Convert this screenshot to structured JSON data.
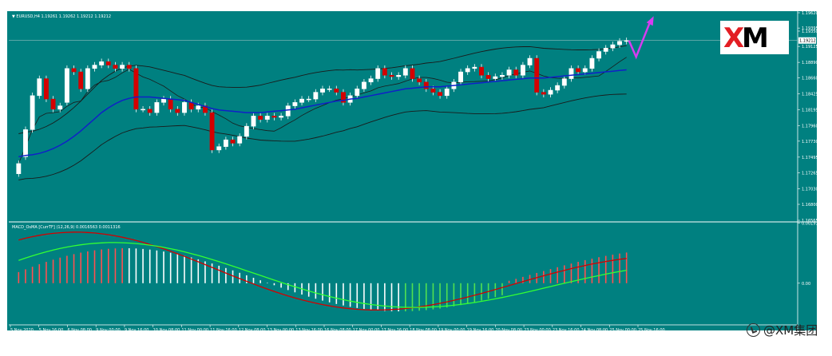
{
  "chart_data": [
    {
      "type": "candlestick",
      "title": "EURUSD,H4  1.19261 1.19262 1.19212 1.19212",
      "y_ticks": [
        "1.19620",
        "1.19395",
        "1.19350",
        "1.19125",
        "1.18890",
        "1.18660",
        "1.18425",
        "1.18195",
        "1.17960",
        "1.17730",
        "1.17495",
        "1.17265",
        "1.17030",
        "1.16800",
        "1.16565"
      ],
      "current_price": "1.19212",
      "ylim": [
        1.16565,
        1.1962
      ],
      "x_ticks": [
        "5 Nov 2020",
        "5 Nov 16:00",
        "6 Nov 08:00",
        "9 Nov 00:00",
        "9 Nov 16:00",
        "10 Nov 08:00",
        "11 Nov 00:00",
        "11 Nov 16:00",
        "12 Nov 08:00",
        "13 Nov 00:00",
        "13 Nov 16:00",
        "16 Nov 08:00",
        "17 Nov 00:00",
        "17 Nov 16:00",
        "18 Nov 08:00",
        "19 Nov 00:00",
        "19 Nov 16:00",
        "20 Nov 08:00",
        "23 Nov 00:00",
        "23 Nov 16:00",
        "24 Nov 08:00",
        "25 Nov 00:00",
        "25 Nov 16:00"
      ],
      "candles_close": [
        1.174,
        1.179,
        1.184,
        1.1865,
        1.1835,
        1.182,
        1.1825,
        1.188,
        1.1875,
        1.185,
        1.188,
        1.1885,
        1.189,
        1.1885,
        1.188,
        1.1885,
        1.188,
        1.182,
        1.182,
        1.1815,
        1.183,
        1.1835,
        1.182,
        1.1815,
        1.183,
        1.182,
        1.1825,
        1.1815,
        1.176,
        1.1765,
        1.1775,
        1.177,
        1.178,
        1.1795,
        1.181,
        1.1805,
        1.181,
        1.1808,
        1.181,
        1.1825,
        1.183,
        1.1835,
        1.1835,
        1.1845,
        1.185,
        1.185,
        1.1845,
        1.183,
        1.184,
        1.185,
        1.186,
        1.1865,
        1.188,
        1.187,
        1.1868,
        1.187,
        1.188,
        1.1865,
        1.186,
        1.185,
        1.1845,
        1.184,
        1.185,
        1.186,
        1.1875,
        1.188,
        1.1882,
        1.187,
        1.1865,
        1.1868,
        1.187,
        1.1878,
        1.187,
        1.1885,
        1.1895,
        1.1845,
        1.1842,
        1.1848,
        1.1855,
        1.1865,
        1.188,
        1.1875,
        1.188,
        1.1895,
        1.1905,
        1.191,
        1.1915,
        1.192,
        1.1921
      ],
      "candles_open": [
        1.1725,
        1.175,
        1.179,
        1.184,
        1.1865,
        1.1835,
        1.182,
        1.183,
        1.188,
        1.1875,
        1.185,
        1.188,
        1.1885,
        1.189,
        1.1885,
        1.188,
        1.1885,
        1.188,
        1.182,
        1.182,
        1.1815,
        1.183,
        1.1835,
        1.182,
        1.1815,
        1.183,
        1.182,
        1.1825,
        1.1815,
        1.176,
        1.1765,
        1.1775,
        1.177,
        1.178,
        1.1795,
        1.181,
        1.1805,
        1.181,
        1.1808,
        1.181,
        1.1825,
        1.183,
        1.1835,
        1.1835,
        1.1845,
        1.185,
        1.185,
        1.1845,
        1.183,
        1.184,
        1.185,
        1.186,
        1.1865,
        1.188,
        1.187,
        1.1868,
        1.187,
        1.188,
        1.1865,
        1.186,
        1.185,
        1.1845,
        1.184,
        1.185,
        1.186,
        1.1875,
        1.188,
        1.1882,
        1.187,
        1.1865,
        1.1868,
        1.187,
        1.1878,
        1.187,
        1.1885,
        1.1895,
        1.1845,
        1.1842,
        1.1848,
        1.1855,
        1.1865,
        1.188,
        1.1875,
        1.188,
        1.1895,
        1.1905,
        1.191,
        1.1915,
        1.192
      ],
      "ma_blue": [
        1.175,
        1.1752,
        1.1753,
        1.1755,
        1.1758,
        1.1762,
        1.1767,
        1.1773,
        1.178,
        1.1788,
        1.1797,
        1.1806,
        1.1815,
        1.1822,
        1.1828,
        1.1833,
        1.1836,
        1.1838,
        1.1838,
        1.1838,
        1.1837,
        1.1836,
        1.1835,
        1.1834,
        1.1833,
        1.183,
        1.1827,
        1.1824,
        1.1821,
        1.1819,
        1.1818,
        1.1817,
        1.1816,
        1.1815,
        1.1815,
        1.1815,
        1.1816,
        1.1817,
        1.1818,
        1.1819,
        1.182,
        1.1822,
        1.1824,
        1.1826,
        1.1828,
        1.183,
        1.1832,
        1.1833,
        1.1835,
        1.1836,
        1.1838,
        1.184,
        1.1842,
        1.1844,
        1.1846,
        1.1848,
        1.185,
        1.1851,
        1.1852,
        1.1853,
        1.1853,
        1.1853,
        1.1854,
        1.1855,
        1.1856,
        1.1857,
        1.1858,
        1.1859,
        1.186,
        1.1861,
        1.1862,
        1.1863,
        1.1864,
        1.1865,
        1.1866,
        1.1866,
        1.1866,
        1.1867,
        1.1868,
        1.1869,
        1.187,
        1.1871,
        1.1872,
        1.1873,
        1.1874,
        1.1875,
        1.1876,
        1.1877,
        1.1878
      ],
      "forecast": "magenta arrow: dip then rise"
    },
    {
      "type": "macd",
      "title": "MACD_OsMA [CurrTF] (12,26,9) 0.0016563 0.0011316",
      "y_ticks": [
        "0.00191",
        "0.00"
      ],
      "ylim": [
        -0.0013,
        0.0019
      ]
    }
  ],
  "logo": {
    "text": "XM",
    "colors": {
      "x": "#e31e24",
      "m": "#000000"
    }
  },
  "watermark": {
    "text": "@XM集团"
  }
}
